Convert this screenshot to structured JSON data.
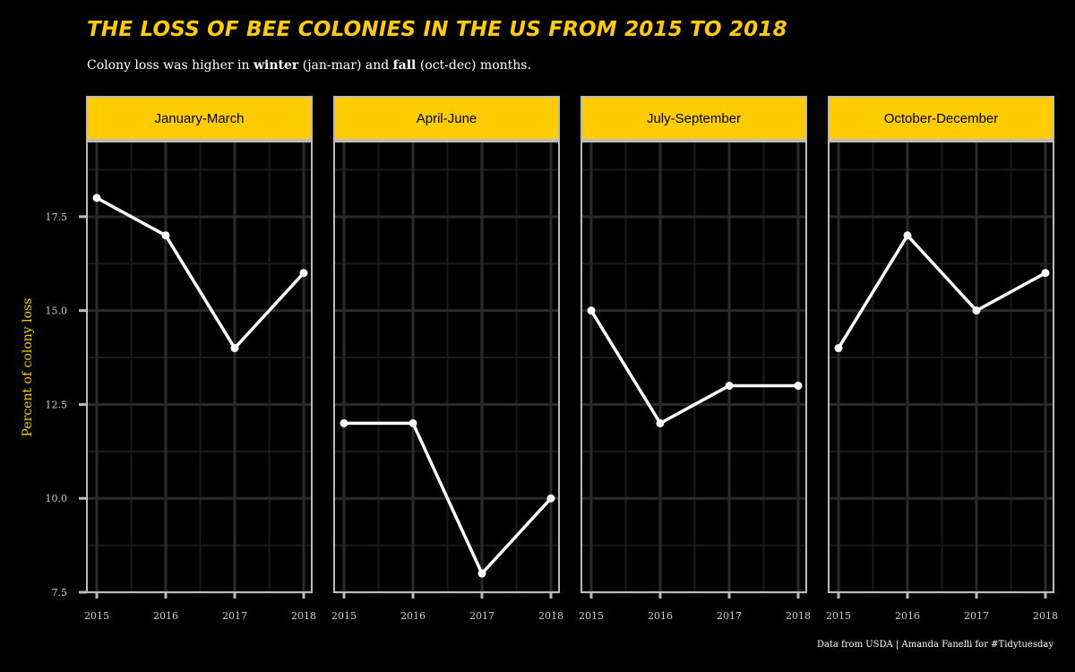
{
  "title": "THE LOSS OF BEE COLONIES IN THE US FROM 2015 TO 2018",
  "subtitle": {
    "part1": "Colony loss was higher in ",
    "bold1": "winter",
    "part2": " (jan-mar) and ",
    "bold2": "fall",
    "part3": " (oct-dec) months."
  },
  "caption": "Data from USDA | Amanda Fanelli  for #Tidytuesday",
  "colors": {
    "background": "#000000",
    "accent": "#FFCC00",
    "line": "#FFFFFF",
    "grid": "#2a2a2a",
    "panel_border": "#BBBBBB"
  },
  "chart_data": {
    "type": "line",
    "ylabel": "Percent of colony loss",
    "xlabel": "",
    "ylim": [
      7.5,
      19.5
    ],
    "yticks": [
      7.5,
      10.0,
      12.5,
      15.0,
      17.5
    ],
    "ytick_labels": [
      "7.5",
      "10.0",
      "12.5",
      "15.0",
      "17.5"
    ],
    "x": [
      "2015",
      "2016",
      "2017",
      "2018"
    ],
    "grid": true,
    "facets": [
      {
        "label": "January-March",
        "values": [
          18,
          17,
          14,
          16
        ]
      },
      {
        "label": "April-June",
        "values": [
          12,
          12,
          8,
          10
        ]
      },
      {
        "label": "July-September",
        "values": [
          15,
          12,
          13,
          13
        ]
      },
      {
        "label": "October-December",
        "values": [
          14,
          17,
          15,
          16
        ]
      }
    ]
  }
}
